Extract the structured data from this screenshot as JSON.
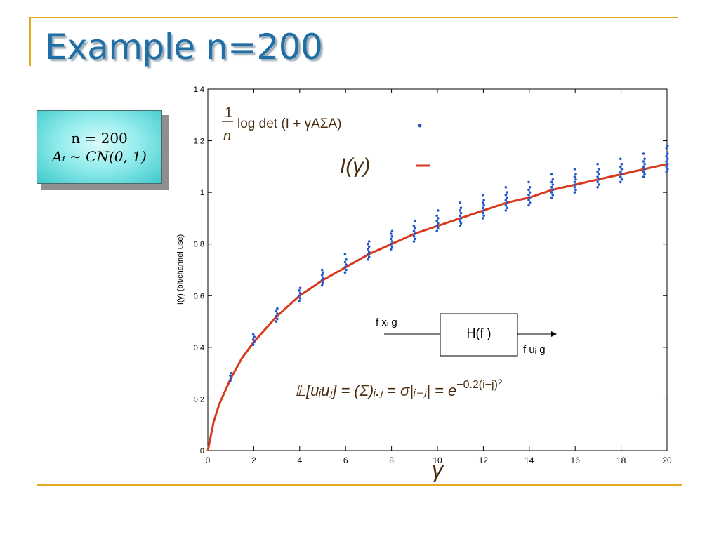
{
  "slide": {
    "title": "Example n=200",
    "callout_line1": "n = 200",
    "callout_line2": "Aᵢ ∼ CN(0, 1)",
    "colors": {
      "title": "#1f6fa6",
      "rule": "#e2a820",
      "dots": "#2255c8",
      "curve": "#d83a1e"
    }
  },
  "chart_data": {
    "type": "scatter",
    "ylabel": "I(γ) (bit/channel use)",
    "xlabel": "γ",
    "xlim": [
      0,
      20
    ],
    "ylim": [
      0,
      1.4
    ],
    "x_ticks": [
      "0",
      "2",
      "4",
      "6",
      "8",
      "10",
      "12",
      "14",
      "16",
      "18",
      "20"
    ],
    "y_ticks": [
      "0",
      "0.2",
      "0.4",
      "0.6",
      "0.8",
      "1",
      "1.2",
      "1.4"
    ],
    "legend": {
      "position": "top-left",
      "entries": [
        {
          "frac": "1",
          "den": "n",
          "expr": "log det (I + γAΣA)"
        },
        {
          "expr": "I(γ)"
        }
      ]
    },
    "block_diagram": {
      "input": "f xᵢ g",
      "block": "H(f )",
      "output": "f uᵢ g"
    },
    "formula": "𝔼[uᵢuⱼ] = (Σ)ᵢ.ⱼ = σ|ᵢ₋ⱼ| = e",
    "formula_exp": "−0.2(i−j)",
    "formula_sq": "2",
    "series": [
      {
        "name": "1/n log det (I + γAΣA)",
        "type": "scatter",
        "points": [
          {
            "x": 1,
            "y": [
              0.27,
              0.28,
              0.29,
              0.3
            ]
          },
          {
            "x": 2,
            "y": [
              0.41,
              0.42,
              0.43,
              0.44,
              0.45
            ]
          },
          {
            "x": 3,
            "y": [
              0.5,
              0.51,
              0.52,
              0.53,
              0.54,
              0.55
            ]
          },
          {
            "x": 4,
            "y": [
              0.58,
              0.59,
              0.6,
              0.61,
              0.62,
              0.63
            ]
          },
          {
            "x": 5,
            "y": [
              0.64,
              0.65,
              0.66,
              0.67,
              0.68,
              0.69,
              0.7
            ]
          },
          {
            "x": 6,
            "y": [
              0.69,
              0.7,
              0.71,
              0.72,
              0.73,
              0.74,
              0.76
            ]
          },
          {
            "x": 7,
            "y": [
              0.74,
              0.75,
              0.76,
              0.77,
              0.78,
              0.79,
              0.8,
              0.81
            ]
          },
          {
            "x": 8,
            "y": [
              0.78,
              0.79,
              0.8,
              0.81,
              0.82,
              0.83,
              0.84,
              0.85
            ]
          },
          {
            "x": 9,
            "y": [
              0.81,
              0.82,
              0.83,
              0.84,
              0.85,
              0.86,
              0.87,
              0.89
            ]
          },
          {
            "x": 10,
            "y": [
              0.85,
              0.86,
              0.87,
              0.88,
              0.89,
              0.9,
              0.91,
              0.93
            ]
          },
          {
            "x": 11,
            "y": [
              0.87,
              0.88,
              0.89,
              0.9,
              0.91,
              0.92,
              0.93,
              0.94,
              0.96
            ]
          },
          {
            "x": 12,
            "y": [
              0.9,
              0.91,
              0.92,
              0.93,
              0.94,
              0.95,
              0.96,
              0.97,
              0.99
            ]
          },
          {
            "x": 13,
            "y": [
              0.93,
              0.94,
              0.95,
              0.96,
              0.97,
              0.98,
              0.99,
              1.0,
              1.02
            ]
          },
          {
            "x": 14,
            "y": [
              0.95,
              0.96,
              0.97,
              0.98,
              0.99,
              1.0,
              1.01,
              1.02,
              1.04
            ]
          },
          {
            "x": 15,
            "y": [
              0.98,
              0.99,
              1.0,
              1.01,
              1.02,
              1.03,
              1.04,
              1.05,
              1.07
            ]
          },
          {
            "x": 16,
            "y": [
              1.0,
              1.01,
              1.02,
              1.03,
              1.04,
              1.05,
              1.06,
              1.07,
              1.09
            ]
          },
          {
            "x": 17,
            "y": [
              1.02,
              1.03,
              1.04,
              1.05,
              1.06,
              1.07,
              1.08,
              1.09,
              1.11
            ]
          },
          {
            "x": 18,
            "y": [
              1.04,
              1.05,
              1.06,
              1.07,
              1.08,
              1.09,
              1.1,
              1.11,
              1.13
            ]
          },
          {
            "x": 19,
            "y": [
              1.06,
              1.07,
              1.08,
              1.09,
              1.1,
              1.11,
              1.12,
              1.13,
              1.15
            ]
          },
          {
            "x": 20,
            "y": [
              1.08,
              1.09,
              1.1,
              1.11,
              1.12,
              1.13,
              1.14,
              1.15,
              1.17,
              1.18
            ]
          }
        ]
      },
      {
        "name": "I(γ)",
        "type": "line",
        "x": [
          0,
          0.25,
          0.5,
          1,
          1.5,
          2,
          3,
          4,
          5,
          6,
          7,
          8,
          9,
          10,
          11,
          12,
          13,
          14,
          15,
          16,
          17,
          18,
          19,
          20
        ],
        "y": [
          0,
          0.11,
          0.18,
          0.28,
          0.36,
          0.42,
          0.52,
          0.6,
          0.66,
          0.71,
          0.76,
          0.8,
          0.84,
          0.87,
          0.9,
          0.93,
          0.96,
          0.98,
          1.01,
          1.03,
          1.05,
          1.07,
          1.09,
          1.11
        ]
      }
    ]
  }
}
